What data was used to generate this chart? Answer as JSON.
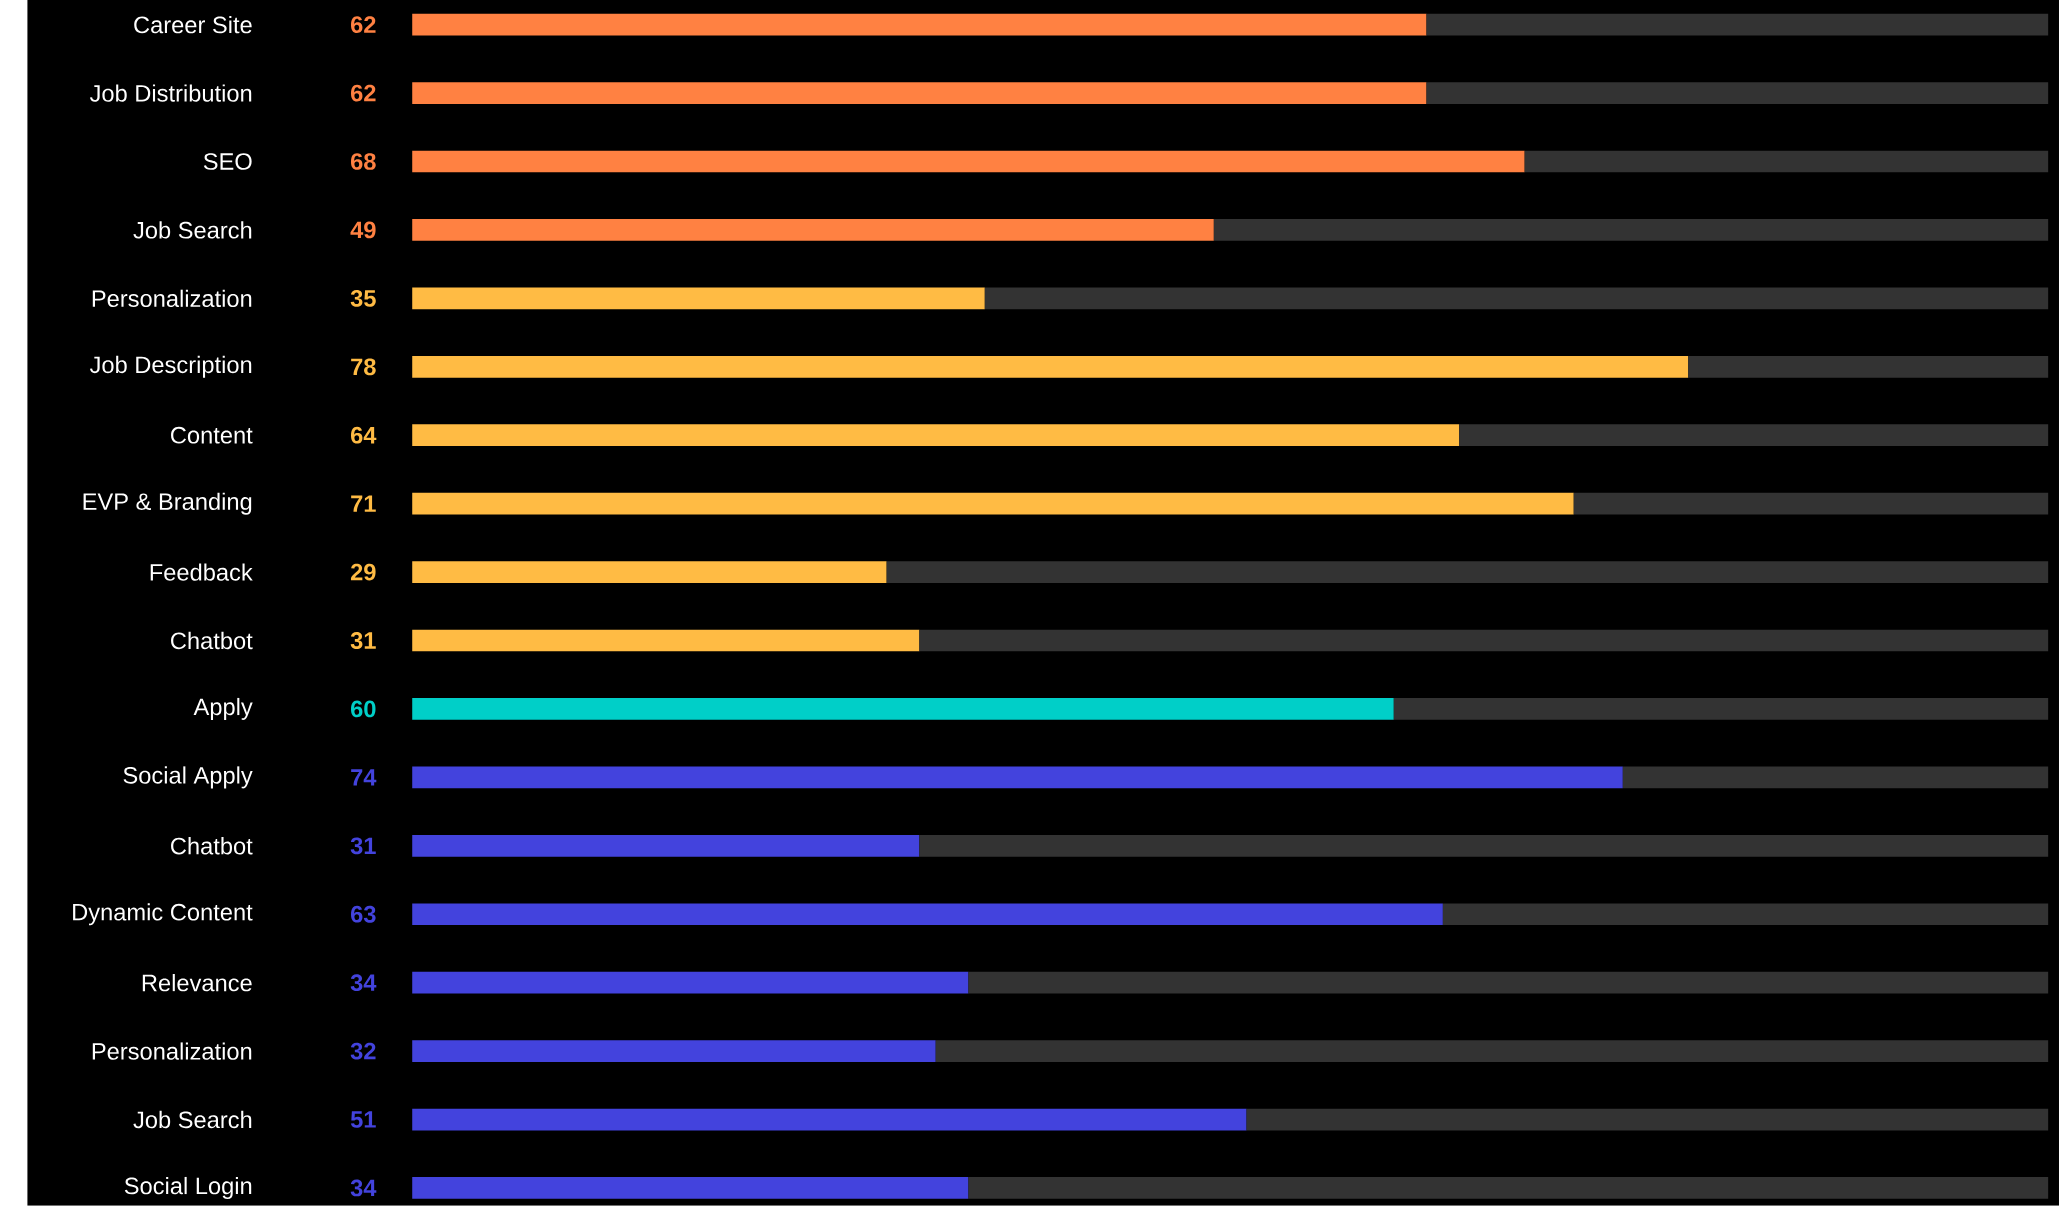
{
  "chart_data": {
    "type": "bar",
    "orientation": "horizontal",
    "stacked": true,
    "xlim": [
      0,
      100
    ],
    "tick_labels": "y",
    "categories": [
      "Career Site",
      "Job Distribution",
      "SEO",
      "Job Search",
      "Personalization",
      "Job Description",
      "Content",
      "EVP & Branding",
      "Feedback",
      "Chatbot",
      "Apply",
      "Social Apply",
      "Chatbot",
      "Dynamic Content",
      "Relevance",
      "Personalization",
      "Job Search",
      "Social Login"
    ],
    "series": [
      {
        "colors": [
          "#ff8142",
          "#ff8142",
          "#ff8142",
          "#ff8142",
          "#ffbb44",
          "#ffbb44",
          "#ffbb44",
          "#ffbb44",
          "#ffbb44",
          "#ffbb44",
          "#00cfc8",
          "#4343dd",
          "#4343dd",
          "#4343dd",
          "#4343dd",
          "#4343dd",
          "#4343dd",
          "#4343dd"
        ],
        "values": [
          62,
          62,
          68,
          49,
          35,
          78,
          64,
          71,
          29,
          31,
          60,
          74,
          31,
          63,
          34,
          32,
          51,
          34
        ],
        "value_labels": [
          "62",
          "62",
          "68",
          "49",
          "35",
          "78",
          "64",
          "71",
          "29",
          "31",
          "60",
          "74",
          "31",
          "63",
          "34",
          "32",
          "51",
          "34"
        ]
      },
      {
        "color": "#333333",
        "values": [
          38,
          38,
          32,
          51,
          65,
          22,
          36,
          29,
          71,
          69,
          40,
          26,
          69,
          37,
          66,
          68,
          49,
          66
        ]
      }
    ]
  }
}
